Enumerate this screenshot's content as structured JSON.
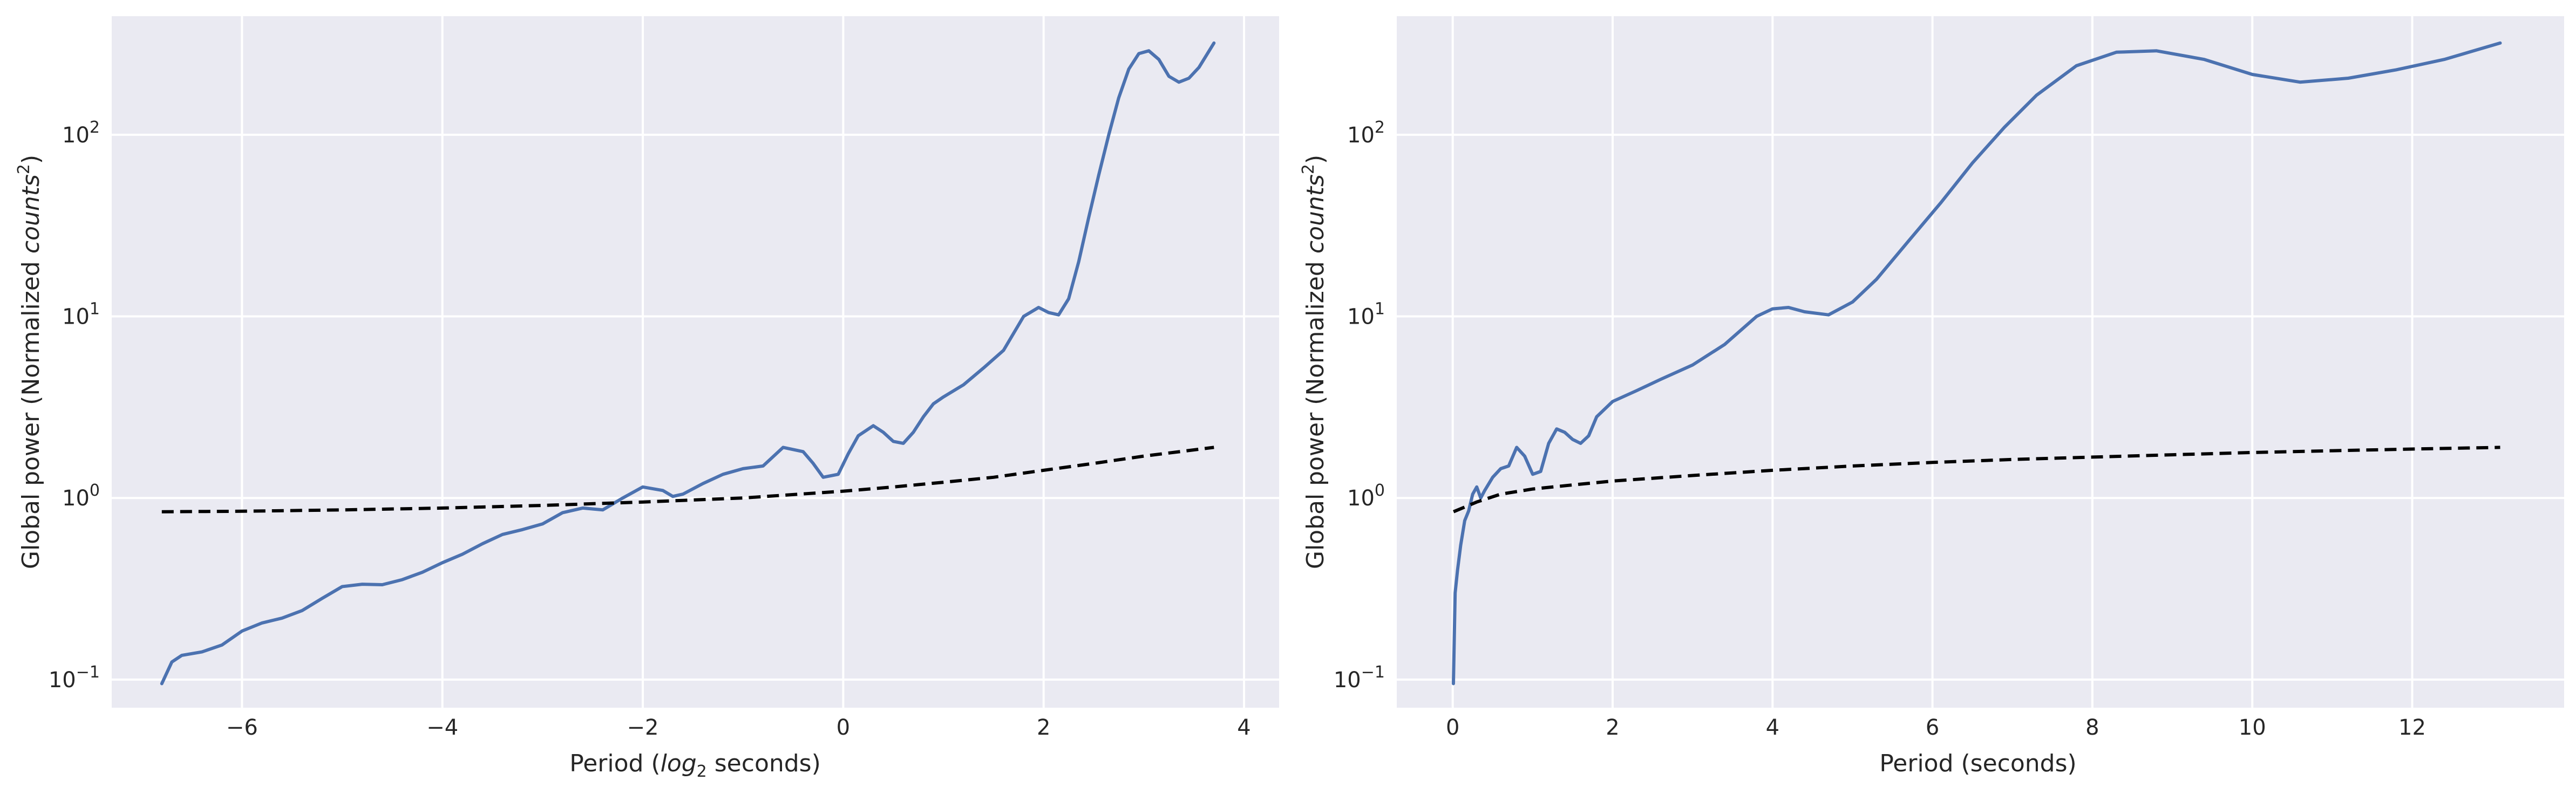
{
  "chart_data": [
    {
      "type": "line",
      "xlabel_pre": "Period (",
      "xlabel_math": "log",
      "xlabel_sub": "2",
      "xlabel_post": " seconds)",
      "ylabel_pre": "Global power (Normalized ",
      "ylabel_math": "counts",
      "ylabel_sup": "2",
      "ylabel_post": ")",
      "yscale": "log",
      "xlim": [
        -7.3,
        4.35
      ],
      "ylim": [
        0.07,
        450
      ],
      "grid": true,
      "xticks": [
        -6,
        -4,
        -2,
        0,
        2,
        4
      ],
      "xtick_labels": [
        "−6",
        "−4",
        "−2",
        "0",
        "2",
        "4"
      ],
      "yticks": [
        0.1,
        1,
        10,
        100
      ],
      "ytick_labels": [
        {
          "base": "10",
          "exp": "−1"
        },
        {
          "base": "10",
          "exp": "0"
        },
        {
          "base": "10",
          "exp": "1"
        },
        {
          "base": "10",
          "exp": "2"
        }
      ],
      "series": [
        {
          "color": "#4c72b0",
          "style": "solid",
          "x": [
            -6.8,
            -6.7,
            -6.6,
            -6.4,
            -6.2,
            -6.0,
            -5.8,
            -5.6,
            -5.4,
            -5.2,
            -5.0,
            -4.8,
            -4.6,
            -4.4,
            -4.2,
            -4.0,
            -3.8,
            -3.6,
            -3.4,
            -3.2,
            -3.0,
            -2.8,
            -2.6,
            -2.4,
            -2.2,
            -2.0,
            -1.8,
            -1.7,
            -1.6,
            -1.4,
            -1.2,
            -1.0,
            -0.8,
            -0.6,
            -0.4,
            -0.3,
            -0.2,
            -0.05,
            0.05,
            0.15,
            0.3,
            0.4,
            0.5,
            0.6,
            0.7,
            0.8,
            0.9,
            1.0,
            1.2,
            1.4,
            1.6,
            1.8,
            1.95,
            2.05,
            2.15,
            2.25,
            2.35,
            2.45,
            2.55,
            2.65,
            2.75,
            2.85,
            2.95,
            3.05,
            3.15,
            3.25,
            3.35,
            3.45,
            3.55,
            3.7
          ],
          "y": [
            0.095,
            0.125,
            0.136,
            0.142,
            0.155,
            0.185,
            0.205,
            0.218,
            0.24,
            0.28,
            0.325,
            0.335,
            0.333,
            0.355,
            0.39,
            0.44,
            0.49,
            0.56,
            0.63,
            0.67,
            0.72,
            0.83,
            0.88,
            0.86,
            1.0,
            1.15,
            1.1,
            1.02,
            1.05,
            1.2,
            1.35,
            1.45,
            1.5,
            1.9,
            1.8,
            1.55,
            1.3,
            1.35,
            1.75,
            2.2,
            2.5,
            2.3,
            2.05,
            2.0,
            2.3,
            2.8,
            3.3,
            3.6,
            4.2,
            5.2,
            6.5,
            10.0,
            11.2,
            10.5,
            10.2,
            12.5,
            20.0,
            35.0,
            60.0,
            100.0,
            160.0,
            230.0,
            280.0,
            290.0,
            260.0,
            210.0,
            195.0,
            205.0,
            235.0,
            320.0
          ]
        },
        {
          "color": "#000000",
          "style": "dashed",
          "x": [
            -6.8,
            -6.0,
            -5.0,
            -4.0,
            -3.0,
            -2.0,
            -1.0,
            0.0,
            0.5,
            1.0,
            1.5,
            2.0,
            2.5,
            3.0,
            3.7
          ],
          "y": [
            0.84,
            0.845,
            0.86,
            0.88,
            0.91,
            0.95,
            1.0,
            1.09,
            1.15,
            1.22,
            1.3,
            1.42,
            1.55,
            1.7,
            1.9
          ]
        }
      ]
    },
    {
      "type": "line",
      "xlabel_pre": "Period (seconds)",
      "xlabel_math": "",
      "xlabel_sub": "",
      "xlabel_post": "",
      "ylabel_pre": "Global power (Normalized ",
      "ylabel_math": "counts",
      "ylabel_sup": "2",
      "ylabel_post": ")",
      "yscale": "log",
      "xlim": [
        -0.7,
        13.9
      ],
      "ylim": [
        0.07,
        450
      ],
      "grid": true,
      "xticks": [
        0,
        2,
        4,
        6,
        8,
        10,
        12
      ],
      "xtick_labels": [
        "0",
        "2",
        "4",
        "6",
        "8",
        "10",
        "12"
      ],
      "yticks": [
        0.1,
        1,
        10,
        100
      ],
      "ytick_labels": [
        {
          "base": "10",
          "exp": "−1"
        },
        {
          "base": "10",
          "exp": "0"
        },
        {
          "base": "10",
          "exp": "1"
        },
        {
          "base": "10",
          "exp": "2"
        }
      ],
      "series": [
        {
          "color": "#4c72b0",
          "style": "solid",
          "x": [
            0.009,
            0.03,
            0.06,
            0.1,
            0.15,
            0.2,
            0.25,
            0.3,
            0.35,
            0.4,
            0.5,
            0.6,
            0.7,
            0.8,
            0.9,
            1.0,
            1.1,
            1.2,
            1.3,
            1.4,
            1.5,
            1.6,
            1.7,
            1.8,
            2.0,
            2.3,
            2.6,
            3.0,
            3.4,
            3.8,
            4.0,
            4.2,
            4.4,
            4.7,
            5.0,
            5.3,
            5.7,
            6.1,
            6.5,
            6.9,
            7.3,
            7.8,
            8.3,
            8.8,
            9.4,
            10.0,
            10.6,
            11.2,
            11.8,
            12.4,
            13.1
          ],
          "y": [
            0.095,
            0.3,
            0.4,
            0.55,
            0.75,
            0.85,
            1.05,
            1.15,
            1.0,
            1.1,
            1.3,
            1.45,
            1.5,
            1.9,
            1.7,
            1.35,
            1.4,
            2.0,
            2.4,
            2.3,
            2.1,
            2.0,
            2.2,
            2.8,
            3.4,
            3.9,
            4.5,
            5.4,
            7.0,
            10.0,
            11.0,
            11.2,
            10.6,
            10.2,
            12.0,
            16.0,
            26.0,
            42.0,
            70.0,
            110.0,
            165.0,
            240.0,
            285.0,
            290.0,
            260.0,
            215.0,
            195.0,
            205.0,
            228.0,
            260.0,
            320.0
          ]
        },
        {
          "color": "#000000",
          "style": "dashed",
          "x": [
            0.01,
            0.3,
            0.6,
            1.0,
            1.5,
            2.0,
            3.0,
            4.0,
            5.0,
            6.0,
            7.0,
            8.0,
            9.0,
            10.0,
            11.0,
            12.0,
            13.1
          ],
          "y": [
            0.84,
            0.95,
            1.05,
            1.12,
            1.18,
            1.24,
            1.33,
            1.42,
            1.5,
            1.57,
            1.63,
            1.68,
            1.73,
            1.78,
            1.82,
            1.86,
            1.9
          ]
        }
      ]
    }
  ]
}
